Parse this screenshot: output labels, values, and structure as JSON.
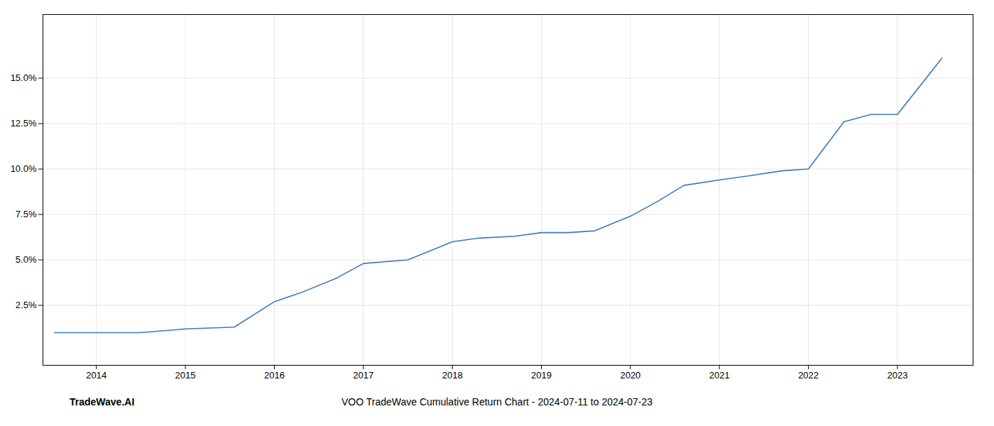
{
  "chart_data": {
    "type": "line",
    "title": "VOO TradeWave Cumulative Return Chart - 2024-07-11 to 2024-07-23",
    "annotations": [
      "TradeWave.AI"
    ],
    "x": [
      2013.53,
      2014.0,
      2014.2,
      2014.5,
      2015.0,
      2015.55,
      2016.0,
      2016.3,
      2016.7,
      2017.0,
      2017.5,
      2018.0,
      2018.3,
      2018.7,
      2019.0,
      2019.3,
      2019.6,
      2020.0,
      2020.3,
      2020.6,
      2021.0,
      2021.3,
      2021.7,
      2022.0,
      2022.4,
      2022.7,
      2023.0,
      2023.5
    ],
    "values": [
      0.01,
      0.01,
      0.01,
      0.01,
      0.012,
      0.013,
      0.027,
      0.032,
      0.04,
      0.048,
      0.05,
      0.06,
      0.062,
      0.063,
      0.065,
      0.065,
      0.066,
      0.074,
      0.082,
      0.091,
      0.094,
      0.096,
      0.099,
      0.1,
      0.126,
      0.13,
      0.13,
      0.161
    ],
    "color": "#3a7abf",
    "xlim": [
      2013.4,
      2023.85
    ],
    "ylim": [
      -0.008,
      0.185
    ],
    "xticks": [
      2014,
      2015,
      2016,
      2017,
      2018,
      2019,
      2020,
      2021,
      2022,
      2023
    ],
    "yticks": [
      {
        "value": 0.025,
        "label": "2.5%"
      },
      {
        "value": 0.05,
        "label": "5.0%"
      },
      {
        "value": 0.075,
        "label": "7.5%"
      },
      {
        "value": 0.1,
        "label": "10.0%"
      },
      {
        "value": 0.125,
        "label": "12.5%"
      },
      {
        "value": 0.15,
        "label": "15.0%"
      }
    ],
    "grid": true
  }
}
